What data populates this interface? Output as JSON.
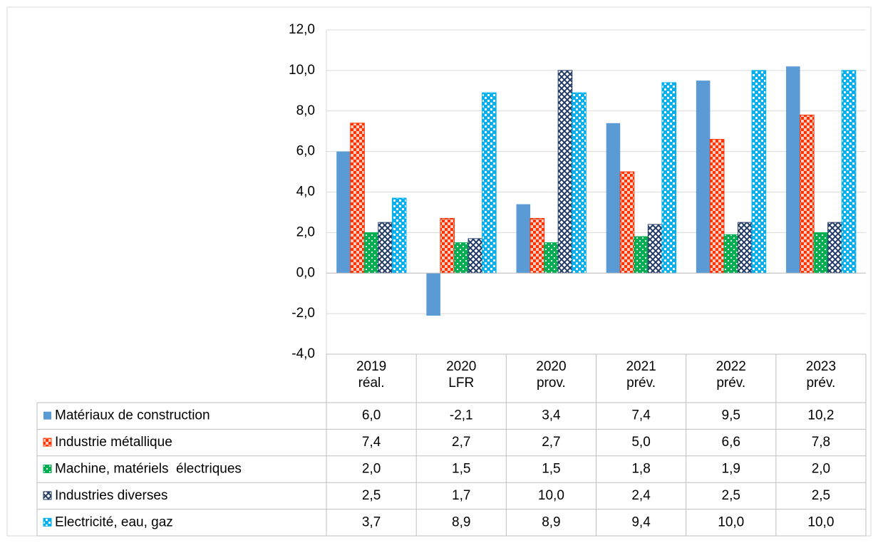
{
  "chart_data": {
    "type": "bar",
    "categories": [
      "2019 réal.",
      "2020 LFR",
      "2020 prov.",
      "2021 prév.",
      "2022 prév.",
      "2023 prév."
    ],
    "series": [
      {
        "name": "Matériaux de construction",
        "color": "#5b9bd5",
        "values": [
          6.0,
          -2.1,
          3.4,
          7.4,
          9.5,
          10.2
        ],
        "value_labels": [
          "6,0",
          "-2,1",
          "3,4",
          "7,4",
          "9,5",
          "10,2"
        ]
      },
      {
        "name": "Industrie métallique",
        "color": "#ff3300",
        "values": [
          7.4,
          2.7,
          2.7,
          5.0,
          6.6,
          7.8
        ],
        "value_labels": [
          "7,4",
          "2,7",
          "2,7",
          "5,0",
          "6,6",
          "7,8"
        ]
      },
      {
        "name": "Machine, matériels  électriques",
        "color": "#00b050",
        "values": [
          2.0,
          1.5,
          1.5,
          1.8,
          1.9,
          2.0
        ],
        "value_labels": [
          "2,0",
          "1,5",
          "1,5",
          "1,8",
          "1,9",
          "2,0"
        ]
      },
      {
        "name": "Industries diverses",
        "color": "#1f3864",
        "values": [
          2.5,
          1.7,
          10.0,
          2.4,
          2.5,
          2.5
        ],
        "value_labels": [
          "2,5",
          "1,7",
          "10,0",
          "2,4",
          "2,5",
          "2,5"
        ]
      },
      {
        "name": "Electricité, eau, gaz",
        "color": "#00b0f0",
        "values": [
          3.7,
          8.9,
          8.9,
          9.4,
          10.0,
          10.0
        ],
        "value_labels": [
          "3,7",
          "8,9",
          "8,9",
          "9,4",
          "10,0",
          "10,0"
        ]
      }
    ],
    "ylim": [
      -4,
      12
    ],
    "yticks": [
      {
        "value": -4,
        "label": "-4,0"
      },
      {
        "value": -2,
        "label": "-2,0"
      },
      {
        "value": 0,
        "label": "0,0"
      },
      {
        "value": 2,
        "label": "2,0"
      },
      {
        "value": 4,
        "label": "4,0"
      },
      {
        "value": 6,
        "label": "6,0"
      },
      {
        "value": 8,
        "label": "8,0"
      },
      {
        "value": 10,
        "label": "10,0"
      },
      {
        "value": 12,
        "label": "12,0"
      }
    ],
    "grid": true
  }
}
